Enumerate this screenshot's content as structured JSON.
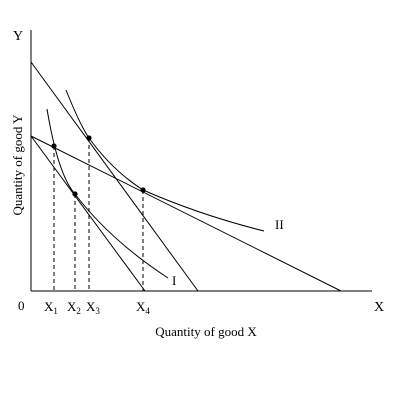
{
  "axes": {
    "y_letter": "Y",
    "x_letter": "X",
    "origin": "0",
    "ylabel": "Quantity of good Y",
    "xlabel": "Quantity of good X"
  },
  "ticks": [
    {
      "main": "X",
      "sub": "1"
    },
    {
      "main": "X",
      "sub": "2"
    },
    {
      "main": "X",
      "sub": "3"
    },
    {
      "main": "X",
      "sub": "4"
    }
  ],
  "curves": {
    "indifference_low_label": "I",
    "indifference_high_label": "II"
  }
}
